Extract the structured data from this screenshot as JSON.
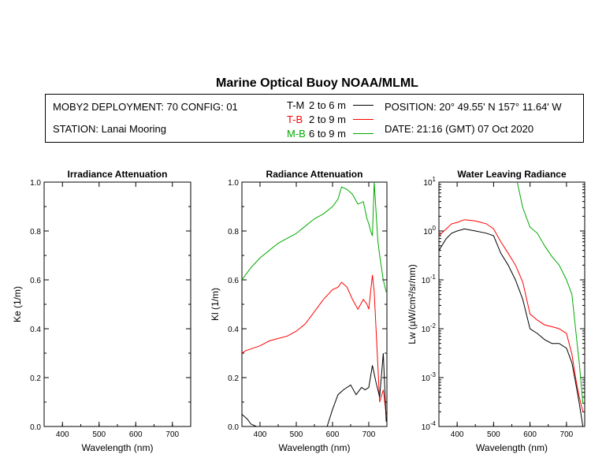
{
  "title": "Marine Optical Buoy NOAA/MLML",
  "info": {
    "deployment": "MOBY2 DEPLOYMENT: 70 CONFIG: 01",
    "station": "STATION: Lanai Mooring",
    "position": "POSITION: 20° 49.55' N   157° 11.64' W",
    "date": "DATE: 21:16 (GMT) 07 Oct 2020"
  },
  "legend": [
    {
      "code": "T-M",
      "depth": "2 to 6  m",
      "color": "#000000"
    },
    {
      "code": "T-B",
      "depth": "2 to 9  m",
      "color": "#ff0000"
    },
    {
      "code": "M-B",
      "depth": "6 to 9  m",
      "color": "#00aa00"
    }
  ],
  "chart_data": [
    {
      "type": "line",
      "title": "Irradiance Attenuation",
      "xlabel": "Wavelength (nm)",
      "ylabel": "Ke  (1/m)",
      "xlim": [
        350,
        750
      ],
      "ylim": [
        0,
        1
      ],
      "xticks": [
        "400",
        "500",
        "600",
        "700"
      ],
      "yticks": [
        "0.0",
        "0.2",
        "0.4",
        "0.6",
        "0.8",
        "1.0"
      ],
      "series": []
    },
    {
      "type": "line",
      "title": "Radiance Attenuation",
      "xlabel": "Wavelength (nm)",
      "ylabel": "Kl  (1/m)",
      "xlim": [
        350,
        750
      ],
      "ylim": [
        0,
        1
      ],
      "xticks": [
        "400",
        "500",
        "600",
        "700"
      ],
      "yticks": [
        "0.0",
        "0.2",
        "0.4",
        "0.6",
        "0.8",
        "1.0"
      ],
      "series": [
        {
          "name": "M-B",
          "color": "#00aa00",
          "x": [
            350,
            360,
            375,
            400,
            425,
            450,
            475,
            500,
            525,
            550,
            575,
            600,
            615,
            625,
            640,
            655,
            670,
            685,
            695,
            700,
            705,
            710,
            715,
            720,
            725,
            730,
            740,
            748
          ],
          "y": [
            0.6,
            0.62,
            0.65,
            0.69,
            0.72,
            0.75,
            0.77,
            0.79,
            0.82,
            0.85,
            0.87,
            0.9,
            0.93,
            0.98,
            0.97,
            0.95,
            0.91,
            0.92,
            0.85,
            0.83,
            0.8,
            0.78,
            1.0,
            0.88,
            0.76,
            0.7,
            0.6,
            0.55
          ]
        },
        {
          "name": "T-B",
          "color": "#ff0000",
          "x": [
            350,
            360,
            380,
            400,
            425,
            450,
            475,
            500,
            525,
            550,
            575,
            600,
            615,
            625,
            640,
            655,
            670,
            685,
            695,
            700,
            705,
            710,
            715,
            720,
            730,
            740,
            748
          ],
          "y": [
            0.3,
            0.31,
            0.32,
            0.33,
            0.35,
            0.36,
            0.37,
            0.39,
            0.42,
            0.47,
            0.52,
            0.56,
            0.57,
            0.59,
            0.57,
            0.52,
            0.48,
            0.52,
            0.5,
            0.48,
            0.55,
            0.62,
            0.55,
            0.4,
            0.1,
            0.15,
            0.05
          ]
        },
        {
          "name": "T-M",
          "color": "#000000",
          "x": [
            350,
            365,
            375,
            390,
            585,
            600,
            615,
            630,
            650,
            665,
            680,
            690,
            700,
            710,
            720,
            730,
            740,
            748
          ],
          "y": [
            0.05,
            0.03,
            0.01,
            0.0,
            0.0,
            0.07,
            0.13,
            0.15,
            0.17,
            0.13,
            0.16,
            0.15,
            0.16,
            0.25,
            0.18,
            0.12,
            0.3,
            0.02
          ]
        }
      ]
    },
    {
      "type": "line",
      "title": "Water Leaving Radiance",
      "xlabel": "Wavelength (nm)",
      "ylabel": "Lw  (µW/cm²/sr/nm)",
      "xlim": [
        350,
        750
      ],
      "ylim": [
        0.0001,
        10
      ],
      "yscale": "log",
      "xticks": [
        "400",
        "500",
        "600",
        "700"
      ],
      "yticks": [
        {
          "base": "10",
          "exp": "1"
        },
        {
          "base": "10",
          "exp": "0"
        },
        {
          "base": "10",
          "exp": "-1"
        },
        {
          "base": "10",
          "exp": "-2"
        },
        {
          "base": "10",
          "exp": "-3"
        },
        {
          "base": "10",
          "exp": "-4"
        }
      ],
      "series": [
        {
          "name": "M-B",
          "color": "#00aa00",
          "x": [
            565,
            580,
            600,
            620,
            640,
            660,
            680,
            700,
            715,
            725,
            735,
            745
          ],
          "y": [
            10,
            3,
            1.2,
            0.9,
            0.5,
            0.3,
            0.2,
            0.1,
            0.05,
            0.01,
            0.002,
            0.0003
          ]
        },
        {
          "name": "T-B",
          "color": "#ff0000",
          "x": [
            350,
            370,
            385,
            400,
            420,
            450,
            480,
            500,
            520,
            540,
            560,
            580,
            600,
            620,
            640,
            660,
            680,
            700,
            715,
            725,
            735,
            745
          ],
          "y": [
            0.8,
            1.1,
            1.4,
            1.5,
            1.7,
            1.6,
            1.4,
            1.1,
            0.6,
            0.35,
            0.2,
            0.09,
            0.02,
            0.015,
            0.012,
            0.011,
            0.01,
            0.008,
            0.003,
            0.001,
            0.0004,
            0.0002
          ]
        },
        {
          "name": "T-M",
          "color": "#000000",
          "x": [
            350,
            370,
            385,
            400,
            420,
            450,
            480,
            500,
            520,
            540,
            560,
            580,
            600,
            620,
            640,
            660,
            680,
            700,
            715,
            725,
            735,
            745
          ],
          "y": [
            0.4,
            0.7,
            0.9,
            1.0,
            1.1,
            1.0,
            0.9,
            0.8,
            0.35,
            0.2,
            0.1,
            0.04,
            0.01,
            0.008,
            0.006,
            0.005,
            0.005,
            0.004,
            0.002,
            0.0008,
            0.0003,
            0.0001
          ]
        }
      ]
    }
  ]
}
